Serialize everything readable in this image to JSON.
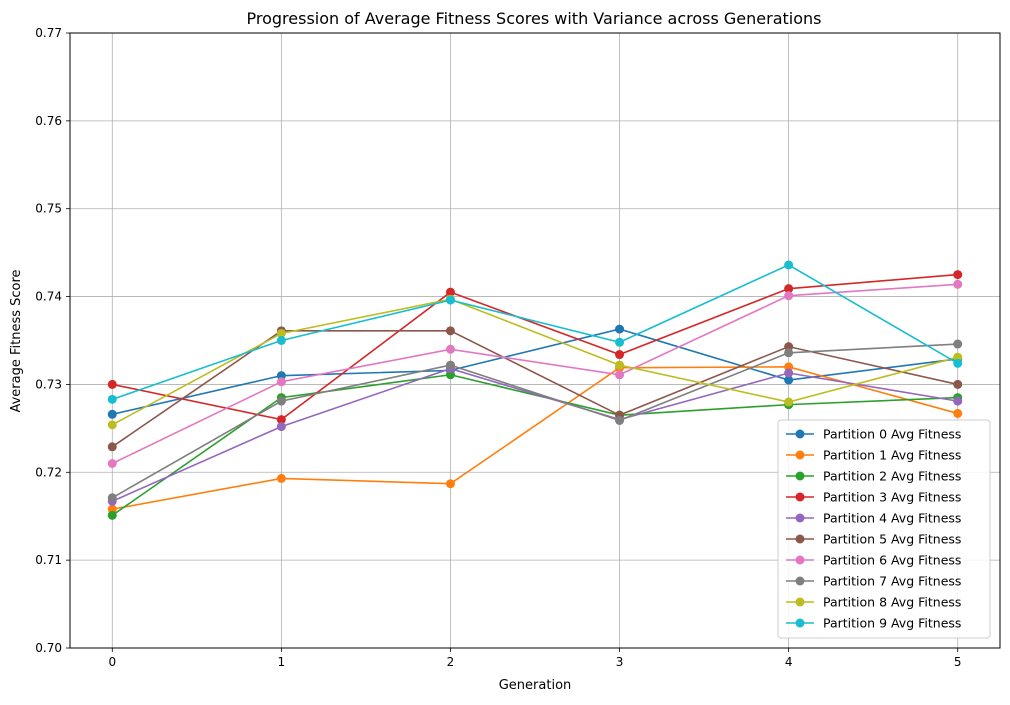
{
  "chart_data": {
    "type": "line",
    "title": "Progression of Average Fitness Scores with Variance across Generations",
    "xlabel": "Generation",
    "ylabel": "Average Fitness Score",
    "x": [
      0,
      1,
      2,
      3,
      4,
      5
    ],
    "xlim": [
      -0.25,
      5.25
    ],
    "ylim": [
      0.7,
      0.77
    ],
    "xticks": [
      "0",
      "1",
      "2",
      "3",
      "4",
      "5"
    ],
    "yticks": [
      "0.70",
      "0.71",
      "0.72",
      "0.73",
      "0.74",
      "0.75",
      "0.76",
      "0.77"
    ],
    "grid": true,
    "legend_position": "lower-right",
    "marker": "circle",
    "series": [
      {
        "name": "Partition 0 Avg Fitness",
        "color": "#1f77b4",
        "values": [
          0.7266,
          0.731,
          0.7316,
          0.7363,
          0.7305,
          0.7329
        ]
      },
      {
        "name": "Partition 1 Avg Fitness",
        "color": "#ff7f0e",
        "values": [
          0.7158,
          0.7193,
          0.7187,
          0.7319,
          0.732,
          0.7267
        ]
      },
      {
        "name": "Partition 2 Avg Fitness",
        "color": "#2ca02c",
        "values": [
          0.7151,
          0.7285,
          0.7311,
          0.7265,
          0.7277,
          0.7285
        ]
      },
      {
        "name": "Partition 3 Avg Fitness",
        "color": "#d62728",
        "values": [
          0.73,
          0.726,
          0.7405,
          0.7334,
          0.7409,
          0.7425
        ]
      },
      {
        "name": "Partition 4 Avg Fitness",
        "color": "#9467bd",
        "values": [
          0.7167,
          0.7252,
          0.7318,
          0.726,
          0.7313,
          0.7281
        ]
      },
      {
        "name": "Partition 5 Avg Fitness",
        "color": "#8c564b",
        "values": [
          0.7229,
          0.7361,
          0.7361,
          0.7265,
          0.7343,
          0.73
        ]
      },
      {
        "name": "Partition 6 Avg Fitness",
        "color": "#e377c2",
        "values": [
          0.721,
          0.7303,
          0.734,
          0.7311,
          0.7401,
          0.7414
        ]
      },
      {
        "name": "Partition 7 Avg Fitness",
        "color": "#7f7f7f",
        "values": [
          0.7171,
          0.7281,
          0.7322,
          0.7259,
          0.7336,
          0.7346
        ]
      },
      {
        "name": "Partition 8 Avg Fitness",
        "color": "#bcbd22",
        "values": [
          0.7254,
          0.7358,
          0.7397,
          0.7322,
          0.728,
          0.7331
        ]
      },
      {
        "name": "Partition 9 Avg Fitness",
        "color": "#17becf",
        "values": [
          0.7283,
          0.735,
          0.7396,
          0.7348,
          0.7436,
          0.7324
        ]
      }
    ]
  }
}
